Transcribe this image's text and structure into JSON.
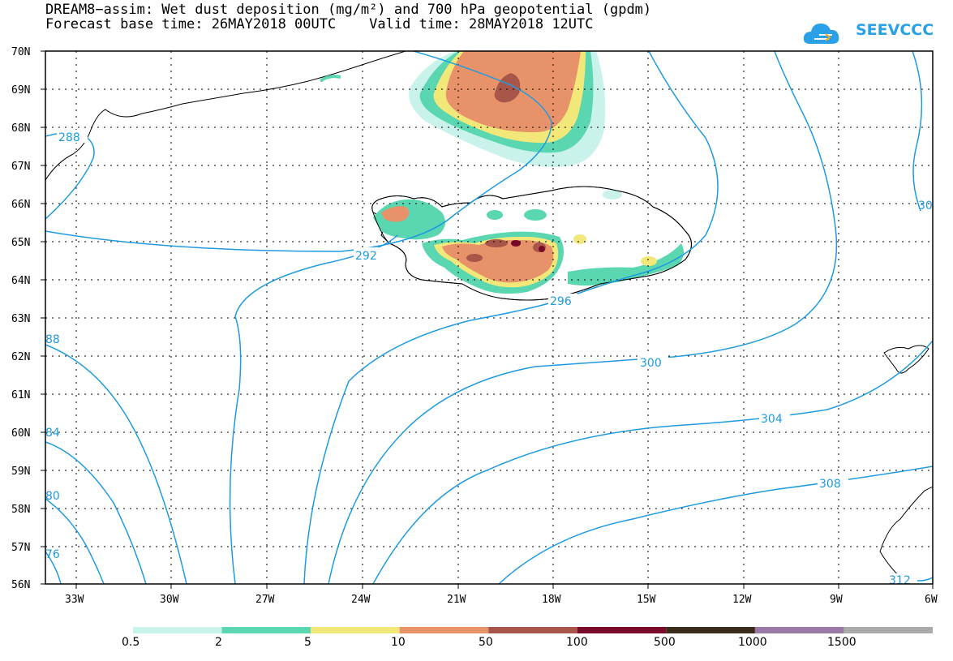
{
  "title_line1": "DREAM8−assim: Wet dust deposition (mg/m²) and 700 hPa geopotential (gpdm)",
  "title_line2": "Forecast base time: 26MAY2018 00UTC    Valid time: 28MAY2018 12UTC",
  "logo_text": "SEEVCCC",
  "lat_labels": [
    "70N",
    "69N",
    "68N",
    "67N",
    "66N",
    "65N",
    "64N",
    "63N",
    "62N",
    "61N",
    "60N",
    "59N",
    "58N",
    "57N",
    "56N"
  ],
  "lon_labels": [
    "33W",
    "30W",
    "27W",
    "24W",
    "21W",
    "18W",
    "15W",
    "12W",
    "9W",
    "6W"
  ],
  "contour_labels": [
    "288",
    "292",
    "296",
    "300",
    "304",
    "308",
    "312",
    "88",
    "84",
    "80",
    "76",
    "30"
  ],
  "legend": {
    "labels": [
      "0.5",
      "2",
      "5",
      "10",
      "50",
      "100",
      "500",
      "1000",
      "1500"
    ],
    "colors": [
      "#c8f2ea",
      "#5ad6b0",
      "#f2e87a",
      "#e8926a",
      "#a8564a",
      "#7a0a2a",
      "#3a2a1a",
      "#9a78a6",
      "#aaaaaa"
    ]
  },
  "colors": {
    "contour": "#1e9be0",
    "coast": "#000000",
    "logo": "#2aa1e6"
  }
}
